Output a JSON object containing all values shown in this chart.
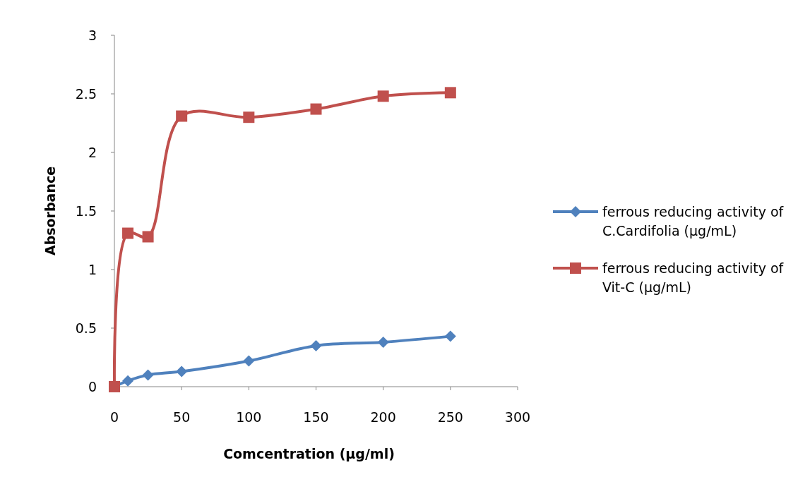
{
  "chart_data": {
    "type": "line",
    "xlabel": "Comcentration (µg/ml)",
    "ylabel": "Absorbance",
    "xlim": [
      0,
      300
    ],
    "xticks": [
      0,
      50,
      100,
      150,
      200,
      250,
      300
    ],
    "ylim": [
      0,
      3
    ],
    "yticks": [
      0,
      0.5,
      1,
      1.5,
      2,
      2.5,
      3
    ],
    "grid": false,
    "legend": "right",
    "x": [
      0,
      10,
      25,
      50,
      100,
      150,
      200,
      250
    ],
    "series": [
      {
        "name": "ferrous reducing activity of C.Cardifolia (µg/mL)",
        "color": "#4f81bd",
        "marker": "diamond",
        "values": [
          0,
          0.05,
          0.1,
          0.13,
          0.22,
          0.35,
          0.38,
          0.43
        ]
      },
      {
        "name": "ferrous reducing activity of Vit-C (µg/mL)",
        "color": "#c0504d",
        "marker": "square",
        "values": [
          0,
          1.31,
          1.28,
          2.31,
          2.3,
          2.37,
          2.48,
          2.51
        ]
      }
    ]
  }
}
